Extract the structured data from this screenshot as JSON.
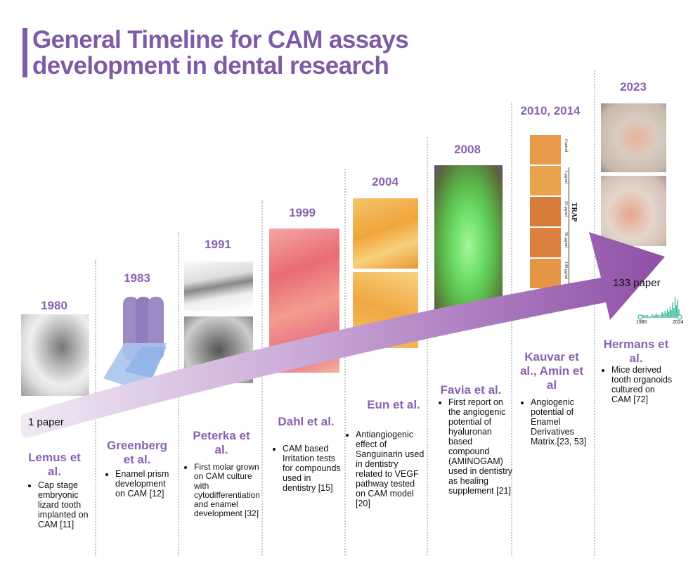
{
  "title": {
    "line1": "General Timeline for CAM assays",
    "line2": "development in dental research"
  },
  "colors": {
    "accent": "#7f5aa6",
    "arrow_start": "#f1eaf5",
    "arrow_end": "#8e4fa6",
    "mini_chart": "#4dbfa3"
  },
  "arrow": {
    "start_label": "1 paper",
    "end_label": "133 paper"
  },
  "mini_chart": {
    "x_start": "1980",
    "x_end": "2024"
  },
  "image_2010_labels": [
    "Control",
    "1 µg/ml",
    "25 µg/ml",
    "50 µg/ml",
    "100 µg/ml",
    "TRAP"
  ],
  "milestones": [
    {
      "year": "1980",
      "author": "Lemus et al.",
      "description": "Cap stage embryonic lizard tooth implanted on CAM [11]"
    },
    {
      "year": "1983",
      "author": "Greenberg et al.",
      "description": "Enamel prism development on CAM [12]"
    },
    {
      "year": "1991",
      "author": "Peterka et al.",
      "description": "First molar grown  on CAM culture with cytodifferentiation and enamel development [32]"
    },
    {
      "year": "1999",
      "author": "Dahl et al.",
      "description": "CAM based Irritation tests for compounds used in dentistry [15]"
    },
    {
      "year": "2004",
      "author": "Eun et al.",
      "description": "Antiangiogenic effect of Sanguinarin used in dentistry related to VEGF pathway tested on CAM model [20]"
    },
    {
      "year": "2008",
      "author": "Favia et al.",
      "description": "First report on the angiogenic potential of hyaluronan based compound (AMINOGAM) used in dentistry as healing supplement [21]"
    },
    {
      "year": "2010, 2014",
      "author": "Kauvar et al., Amin et al",
      "description": "Angiogenic potential of Enamel Derivatives Matrix.[23, 53]"
    },
    {
      "year": "2023",
      "author": "Hermans et al.",
      "description": "Mice derived tooth organoids cultured on CAM [72]"
    }
  ]
}
